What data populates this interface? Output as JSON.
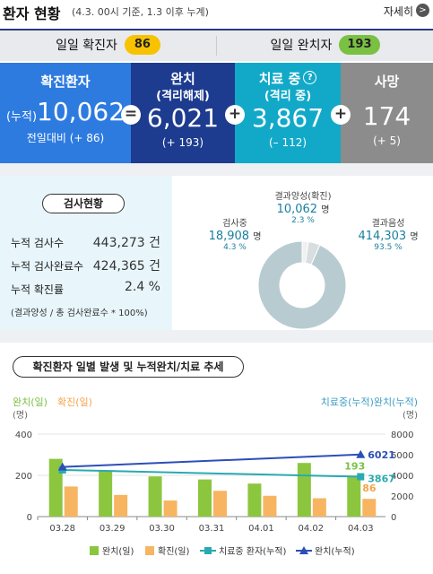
{
  "header": {
    "title": "환자 현황",
    "subtitle": "(4.3. 00시 기준, 1.3 이후 누계)",
    "more_label": "자세히",
    "more_icon": ">"
  },
  "daily": {
    "confirmed_label": "일일 확진자",
    "confirmed_value": "86",
    "released_label": "일일 완치자",
    "released_value": "193"
  },
  "stats": {
    "confirmed": {
      "label": "확진환자",
      "prefix": "(누적)",
      "value": "10,062",
      "change": "전일대비 (+ 86)",
      "color": "#2e7be0"
    },
    "released": {
      "label": "완치",
      "label2": "(격리해제)",
      "value": "6,021",
      "change": "(+ 193)",
      "color": "#1d3b8f"
    },
    "treating": {
      "label": "치료 중",
      "help": "?",
      "label2": "(격리 중)",
      "value": "3,867",
      "change": "(– 112)",
      "color": "#12a9c9"
    },
    "deceased": {
      "label": "사망",
      "value": "174",
      "change": "(+ 5)",
      "color": "#8c8c8c"
    },
    "op_equals": "=",
    "op_plus1": "+",
    "op_plus2": "+"
  },
  "tests": {
    "title": "검사현황",
    "rows": [
      {
        "label": "누적 검사수",
        "value": "443,273 건"
      },
      {
        "label": "누적 검사완료수",
        "value": "424,365 건"
      },
      {
        "label": "누적 확진률",
        "value": "2.4 %"
      }
    ],
    "note": "(결과양성 / 총 검사완료수 * 100%)"
  },
  "donut": {
    "positive": {
      "label": "결과양성(확진)",
      "value": "10,062",
      "unit": "명",
      "pct": "2.3 %",
      "share": 2.3
    },
    "pending": {
      "label": "검사중",
      "value": "18,908",
      "unit": "명",
      "pct": "4.3 %",
      "share": 4.3
    },
    "negative": {
      "label": "결과음성",
      "value": "414,303",
      "unit": "명",
      "pct": "93.5 %",
      "share": 93.5
    },
    "colors": {
      "positive": "#f0f0f0",
      "pending": "#d8dde0",
      "negative": "#b8cbd1"
    }
  },
  "trend": {
    "title": "확진환자 일별 발생 및 누적완치/치료 추세",
    "left_axis_title_a": "완치(일)",
    "left_axis_title_b": "확진(일)",
    "left_unit": "(명)",
    "right_axis_title": "치료중(누적)완치(누적)",
    "right_unit": "(명)",
    "label_released_last": "6021",
    "label_treating_last": "3867",
    "label_daily_released_last": "193",
    "label_daily_confirmed_last": "86",
    "legend": {
      "daily_released": "완치(일)",
      "daily_confirmed": "확진(일)",
      "treating": "치료중 환자(누적)",
      "released_cum": "완치(누적)"
    }
  },
  "chart_data": {
    "type": "bar",
    "categories": [
      "03.28",
      "03.29",
      "03.30",
      "03.31",
      "04.01",
      "04.02",
      "04.03"
    ],
    "series": [
      {
        "name": "완치(일)",
        "axis": "left",
        "kind": "bar",
        "color": "#8cc63f",
        "values": [
          280,
          220,
          195,
          180,
          160,
          260,
          193
        ]
      },
      {
        "name": "확진(일)",
        "axis": "left",
        "kind": "bar",
        "color": "#f7b562",
        "values": [
          146,
          105,
          78,
          125,
          101,
          89,
          86
        ]
      },
      {
        "name": "치료중 환자(누적)",
        "axis": "right",
        "kind": "line",
        "color": "#2aaab0",
        "values": [
          4523,
          4398,
          4275,
          4216,
          4155,
          3979,
          3867
        ]
      },
      {
        "name": "완치(누적)",
        "axis": "right",
        "kind": "line",
        "color": "#2c4fb8",
        "values": [
          4811,
          5033,
          5228,
          5408,
          5567,
          5828,
          6021
        ]
      }
    ],
    "left_ylim": [
      0,
      400
    ],
    "left_ticks": [
      0,
      200,
      400
    ],
    "right_ylim": [
      0,
      8000
    ],
    "right_ticks": [
      0,
      2000,
      4000,
      6000,
      8000
    ],
    "grid": true,
    "legend": "bottom"
  }
}
